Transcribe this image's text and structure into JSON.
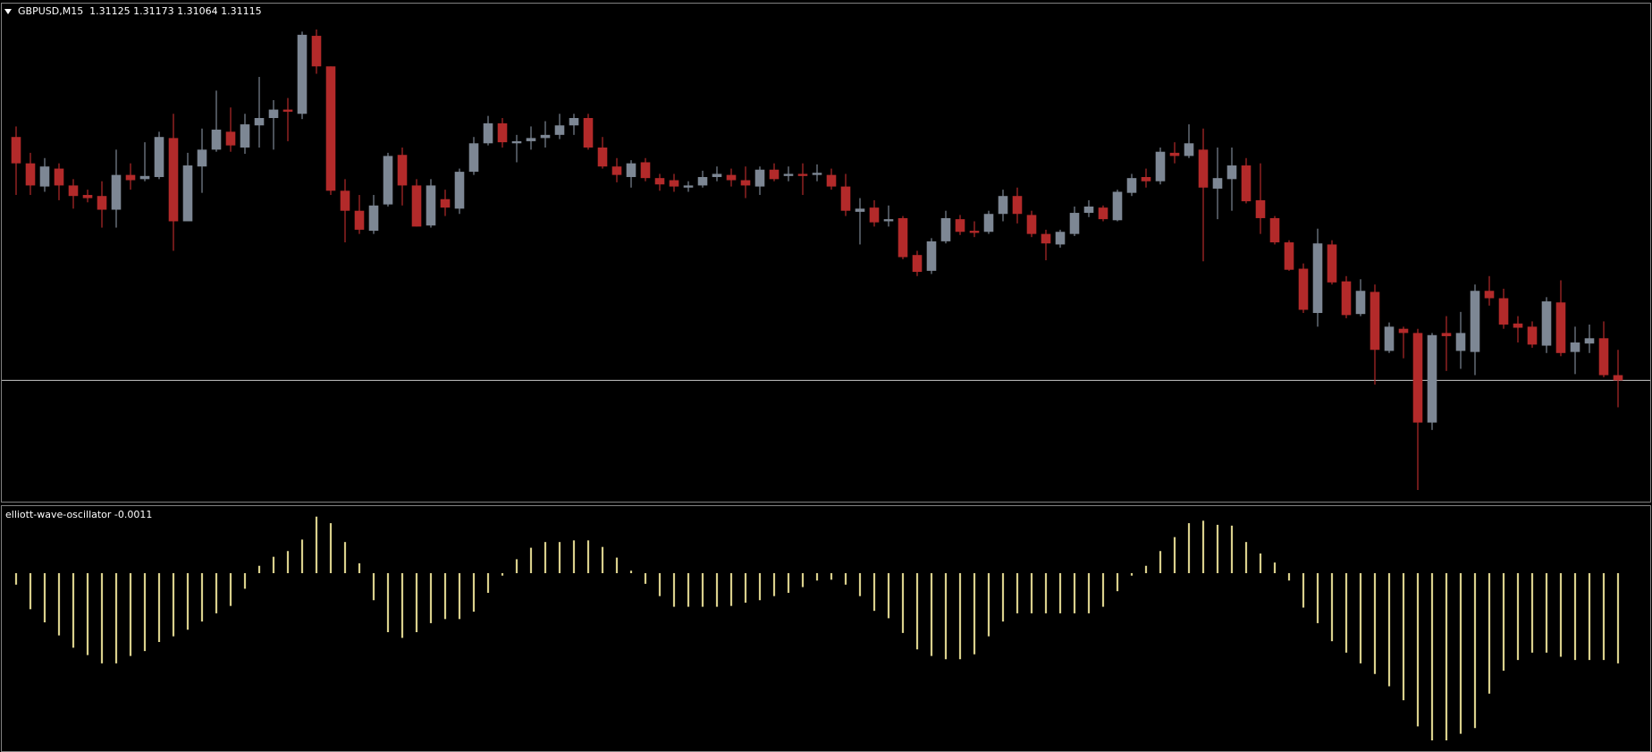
{
  "chart_data": [
    {
      "type": "candlestick",
      "title": "GBPUSD,M15  1.31125 1.31173 1.31064 1.31115",
      "up_color": "#7d8794",
      "down_color": "#b32a2a",
      "bid_line_color": "#c8c8c8",
      "open": [
        1.31577,
        1.31527,
        1.31483,
        1.31517,
        1.31485,
        1.31467,
        1.31465,
        1.31439,
        1.31505,
        1.31497,
        1.31501,
        1.31575,
        1.31417,
        1.31521,
        1.31553,
        1.31587,
        1.31557,
        1.31599,
        1.31613,
        1.31629,
        1.31621,
        1.31769,
        1.31711,
        1.31475,
        1.31437,
        1.31399,
        1.31449,
        1.31543,
        1.31485,
        1.31409,
        1.31459,
        1.31441,
        1.31511,
        1.31565,
        1.31603,
        1.31565,
        1.31569,
        1.31575,
        1.31581,
        1.31599,
        1.31613,
        1.31557,
        1.31521,
        1.31501,
        1.31529,
        1.31499,
        1.31495,
        1.31481,
        1.31485,
        1.31501,
        1.31505,
        1.31495,
        1.31483,
        1.31515,
        1.31503,
        1.31507,
        1.31505,
        1.31505,
        1.31483,
        1.31435,
        1.31443,
        1.31417,
        1.31423,
        1.31353,
        1.31323,
        1.31379,
        1.31421,
        1.31399,
        1.31397,
        1.31431,
        1.31465,
        1.31429,
        1.31393,
        1.31373,
        1.31393,
        1.31433,
        1.31443,
        1.31419,
        1.31471,
        1.31501,
        1.31493,
        1.31547,
        1.31541,
        1.31553,
        1.31479,
        1.31497,
        1.31523,
        1.31457,
        1.31423,
        1.31377,
        1.31327,
        1.31243,
        1.31373,
        1.31303,
        1.31241,
        1.31283,
        1.31171,
        1.31213,
        1.31205,
        1.31035,
        1.31205,
        1.31171,
        1.31169,
        1.31285,
        1.31271,
        1.31223,
        1.31217,
        1.31181,
        1.31263,
        1.31169,
        1.31185,
        1.31195,
        1.31125
      ],
      "high": [
        1.31597,
        1.31547,
        1.31537,
        1.31527,
        1.31497,
        1.31477,
        1.31493,
        1.31553,
        1.31527,
        1.31567,
        1.31587,
        1.31621,
        1.31547,
        1.31593,
        1.31665,
        1.31633,
        1.31621,
        1.31691,
        1.31647,
        1.31651,
        1.31777,
        1.31781,
        1.31711,
        1.31497,
        1.31467,
        1.31467,
        1.31547,
        1.31557,
        1.31497,
        1.31497,
        1.31477,
        1.31517,
        1.31577,
        1.31617,
        1.31613,
        1.31581,
        1.31597,
        1.31607,
        1.31621,
        1.31621,
        1.31621,
        1.31577,
        1.31537,
        1.31533,
        1.31537,
        1.31507,
        1.31507,
        1.31493,
        1.31513,
        1.31521,
        1.31517,
        1.31521,
        1.31521,
        1.31527,
        1.31521,
        1.31527,
        1.31525,
        1.31517,
        1.31507,
        1.31461,
        1.31457,
        1.31447,
        1.31427,
        1.31361,
        1.31385,
        1.31437,
        1.31429,
        1.31417,
        1.31437,
        1.31477,
        1.31481,
        1.31437,
        1.31401,
        1.31401,
        1.31445,
        1.31457,
        1.31447,
        1.31477,
        1.31507,
        1.31517,
        1.31557,
        1.31567,
        1.31601,
        1.31593,
        1.31557,
        1.31557,
        1.31537,
        1.31527,
        1.31427,
        1.31381,
        1.31337,
        1.31403,
        1.31381,
        1.31313,
        1.31307,
        1.31297,
        1.31225,
        1.31217,
        1.31213,
        1.31205,
        1.31237,
        1.31245,
        1.31297,
        1.31313,
        1.31289,
        1.31237,
        1.31227,
        1.31273,
        1.31305,
        1.31217,
        1.31221,
        1.31227,
        1.31173
      ],
      "low": [
        1.31467,
        1.31467,
        1.31473,
        1.31457,
        1.31441,
        1.31453,
        1.31405,
        1.31405,
        1.31477,
        1.31493,
        1.31497,
        1.31361,
        1.31417,
        1.31471,
        1.31549,
        1.31549,
        1.31545,
        1.31557,
        1.31553,
        1.31569,
        1.31611,
        1.31697,
        1.31467,
        1.31377,
        1.31393,
        1.31393,
        1.31445,
        1.31447,
        1.31407,
        1.31405,
        1.31427,
        1.31431,
        1.31505,
        1.31561,
        1.31557,
        1.31529,
        1.31553,
        1.31557,
        1.31573,
        1.31581,
        1.31553,
        1.31517,
        1.31491,
        1.31481,
        1.31493,
        1.31475,
        1.31473,
        1.31473,
        1.31481,
        1.31493,
        1.31483,
        1.31461,
        1.31467,
        1.31493,
        1.31493,
        1.31467,
        1.31493,
        1.31477,
        1.31427,
        1.31373,
        1.31407,
        1.31407,
        1.31345,
        1.31313,
        1.31317,
        1.31375,
        1.31391,
        1.31387,
        1.31393,
        1.31417,
        1.31413,
        1.31387,
        1.31343,
        1.31367,
        1.31389,
        1.31425,
        1.31417,
        1.31417,
        1.31465,
        1.31481,
        1.31487,
        1.31527,
        1.31537,
        1.31341,
        1.31421,
        1.31437,
        1.31451,
        1.31393,
        1.31373,
        1.31323,
        1.31243,
        1.31217,
        1.31297,
        1.31233,
        1.31237,
        1.31107,
        1.31167,
        1.31157,
        1.30907,
        1.31021,
        1.31133,
        1.31137,
        1.31125,
        1.31257,
        1.31213,
        1.31187,
        1.31177,
        1.31167,
        1.31161,
        1.31127,
        1.31167,
        1.31121,
        1.31064
      ],
      "close": [
        1.31527,
        1.31485,
        1.31521,
        1.31485,
        1.31465,
        1.31461,
        1.31439,
        1.31505,
        1.31495,
        1.31503,
        1.31577,
        1.31417,
        1.31523,
        1.31553,
        1.31591,
        1.31561,
        1.31601,
        1.31613,
        1.31629,
        1.31625,
        1.31771,
        1.31711,
        1.31475,
        1.31437,
        1.31401,
        1.31447,
        1.31541,
        1.31485,
        1.31407,
        1.31485,
        1.31443,
        1.31511,
        1.31565,
        1.31603,
        1.31567,
        1.31569,
        1.31575,
        1.31581,
        1.31599,
        1.31613,
        1.31557,
        1.31521,
        1.31505,
        1.31527,
        1.31499,
        1.31487,
        1.31483,
        1.31485,
        1.31501,
        1.31507,
        1.31495,
        1.31485,
        1.31515,
        1.31497,
        1.31507,
        1.31503,
        1.31509,
        1.31483,
        1.31437,
        1.31441,
        1.31415,
        1.31421,
        1.31349,
        1.31321,
        1.31379,
        1.31423,
        1.31397,
        1.31395,
        1.31431,
        1.31465,
        1.31431,
        1.31393,
        1.31375,
        1.31397,
        1.31433,
        1.31445,
        1.31421,
        1.31473,
        1.31499,
        1.31493,
        1.31549,
        1.31541,
        1.31565,
        1.31481,
        1.31499,
        1.31523,
        1.31455,
        1.31423,
        1.31377,
        1.31325,
        1.31249,
        1.31375,
        1.31301,
        1.31239,
        1.31285,
        1.31173,
        1.31217,
        1.31205,
        1.31035,
        1.31201,
        1.31199,
        1.31205,
        1.31285,
        1.31271,
        1.31221,
        1.31215,
        1.31183,
        1.31265,
        1.31167,
        1.31187,
        1.31195,
        1.31125,
        1.31115
      ]
    },
    {
      "type": "bar",
      "title": "elliott-wave-oscillator -0.0011",
      "color": "#d9d08c",
      "values": [
        -0.00014,
        -0.00044,
        -0.0006,
        -0.00076,
        -0.00091,
        -0.001,
        -0.0011,
        -0.0011,
        -0.00101,
        -0.00095,
        -0.00084,
        -0.00077,
        -0.00069,
        -0.00059,
        -0.00049,
        -0.0004,
        -0.00019,
        9e-05,
        0.0002,
        0.00027,
        0.00041,
        0.00069,
        0.00061,
        0.00038,
        0.00012,
        -0.00033,
        -0.00072,
        -0.00079,
        -0.00072,
        -0.00061,
        -0.00056,
        -0.00056,
        -0.00047,
        -0.00024,
        -3e-05,
        0.00017,
        0.00031,
        0.00038,
        0.00038,
        0.0004,
        0.0004,
        0.00032,
        0.00019,
        3e-05,
        -0.00013,
        -0.00028,
        -0.00041,
        -0.00041,
        -0.00041,
        -0.00041,
        -0.0004,
        -0.00036,
        -0.00033,
        -0.00028,
        -0.00024,
        -0.00017,
        -9e-05,
        -8e-05,
        -0.00014,
        -0.00028,
        -0.00046,
        -0.00055,
        -0.00073,
        -0.00093,
        -0.00101,
        -0.00105,
        -0.00105,
        -0.00099,
        -0.00077,
        -0.00059,
        -0.00049,
        -0.00049,
        -0.00049,
        -0.00049,
        -0.00049,
        -0.00049,
        -0.00041,
        -0.00022,
        -3e-05,
        9e-05,
        0.00027,
        0.00044,
        0.00061,
        0.00064,
        0.00059,
        0.00058,
        0.00038,
        0.00024,
        0.00013,
        -9e-05,
        -0.00042,
        -0.00061,
        -0.00083,
        -0.00097,
        -0.0011,
        -0.00123,
        -0.00138,
        -0.00155,
        -0.00187,
        -0.00204,
        -0.00204,
        -0.00196,
        -0.00189,
        -0.00147,
        -0.00119,
        -0.00106,
        -0.00097,
        -0.00097,
        -0.00102,
        -0.00106,
        -0.00106,
        -0.00106,
        -0.0011
      ]
    }
  ]
}
